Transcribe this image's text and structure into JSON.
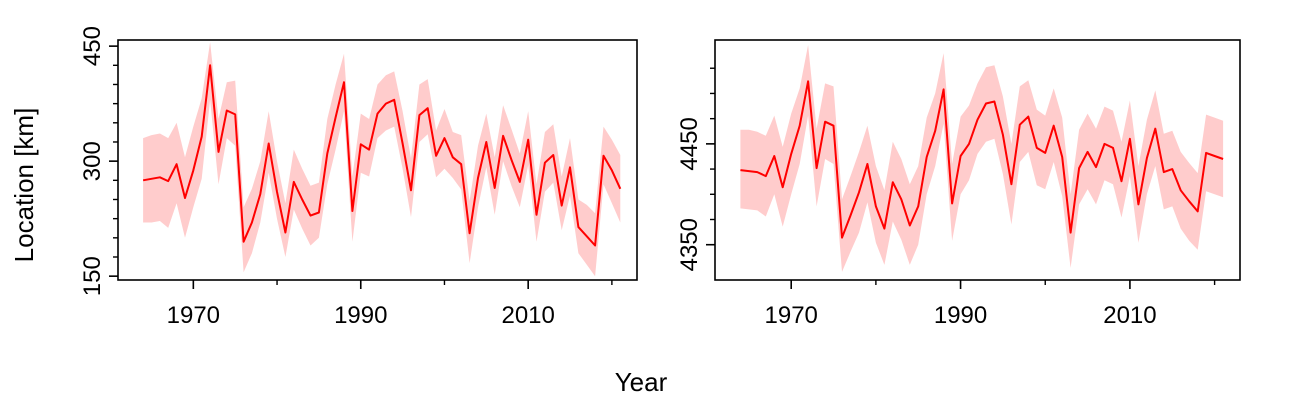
{
  "figure": {
    "xlabel": "Year",
    "ylabel": "Location [km]"
  },
  "colors": {
    "line": "#ff0000",
    "band": "#ffcccc",
    "frame": "#000000",
    "background": "#ffffff"
  },
  "chart_data": [
    {
      "type": "line",
      "title": "",
      "xlabel": "Year",
      "ylabel": "Location [km]",
      "xlim": [
        1961,
        2023
      ],
      "ylim": [
        145,
        458
      ],
      "x_ticks": [
        1970,
        1990,
        2010
      ],
      "x_minor_ticks": [
        1960,
        1980,
        2000,
        2020
      ],
      "y_ticks": [
        150,
        300,
        450
      ],
      "y_tick_labels": [
        "150",
        "300",
        "450"
      ],
      "y_minor_ticks": [
        175,
        200,
        225,
        250,
        275,
        325,
        350,
        375,
        400,
        425
      ],
      "grid": false,
      "legend": "none",
      "x": [
        1964,
        1965,
        1966,
        1967,
        1968,
        1969,
        1970,
        1971,
        1972,
        1973,
        1974,
        1975,
        1976,
        1977,
        1978,
        1979,
        1980,
        1981,
        1982,
        1983,
        1984,
        1985,
        1986,
        1987,
        1988,
        1989,
        1990,
        1991,
        1992,
        1993,
        1994,
        1995,
        1996,
        1997,
        1998,
        1999,
        2000,
        2001,
        2002,
        2003,
        2004,
        2005,
        2006,
        2007,
        2008,
        2009,
        2010,
        2011,
        2012,
        2013,
        2014,
        2015,
        2016,
        2017,
        2018,
        2019,
        2020,
        2021
      ],
      "series": [
        {
          "values": [
            275,
            277,
            279,
            274,
            296,
            252,
            288,
            332,
            425,
            312,
            366,
            361,
            195,
            220,
            257,
            323,
            260,
            207,
            273,
            250,
            229,
            233,
            310,
            357,
            403,
            235,
            322,
            315,
            362,
            375,
            380,
            323,
            262,
            360,
            369,
            307,
            330,
            305,
            296,
            206,
            278,
            325,
            265,
            333,
            302,
            273,
            328,
            230,
            298,
            308,
            242,
            292,
            214,
            202,
            190,
            307,
            288,
            264
          ],
          "lower": [
            220,
            220,
            222,
            213,
            245,
            200,
            240,
            277,
            380,
            270,
            330,
            320,
            155,
            180,
            220,
            285,
            225,
            175,
            237,
            212,
            190,
            200,
            270,
            315,
            365,
            195,
            285,
            280,
            330,
            340,
            345,
            290,
            227,
            325,
            335,
            279,
            290,
            278,
            263,
            167,
            240,
            292,
            230,
            300,
            268,
            240,
            295,
            195,
            260,
            272,
            210,
            255,
            180,
            165,
            150,
            270,
            245,
            220
          ],
          "upper": [
            330,
            334,
            336,
            330,
            350,
            305,
            345,
            382,
            455,
            355,
            403,
            405,
            240,
            264,
            300,
            365,
            300,
            245,
            315,
            290,
            268,
            272,
            355,
            400,
            440,
            280,
            362,
            355,
            400,
            412,
            417,
            365,
            304,
            400,
            407,
            340,
            368,
            338,
            334,
            248,
            320,
            362,
            305,
            373,
            342,
            310,
            365,
            270,
            338,
            348,
            280,
            330,
            250,
            243,
            232,
            345,
            328,
            308
          ]
        }
      ]
    },
    {
      "type": "line",
      "title": "",
      "xlabel": "Year",
      "ylabel": "",
      "xlim": [
        1961,
        2023
      ],
      "ylim": [
        4315,
        4553
      ],
      "x_ticks": [
        1970,
        1990,
        2010
      ],
      "x_minor_ticks": [
        1960,
        1980,
        2000,
        2020
      ],
      "y_ticks": [
        4350,
        4450
      ],
      "y_tick_labels": [
        "4350",
        "4450"
      ],
      "y_minor_ticks": [
        4375,
        4400,
        4425,
        4475,
        4500,
        4525
      ],
      "grid": false,
      "legend": "none",
      "x": [
        1964,
        1965,
        1966,
        1967,
        1968,
        1969,
        1970,
        1971,
        1972,
        1973,
        1974,
        1975,
        1976,
        1977,
        1978,
        1979,
        1980,
        1981,
        1982,
        1983,
        1984,
        1985,
        1986,
        1987,
        1988,
        1989,
        1990,
        1991,
        1992,
        1993,
        1994,
        1995,
        1996,
        1997,
        1998,
        1999,
        2000,
        2001,
        2002,
        2003,
        2004,
        2005,
        2006,
        2007,
        2008,
        2009,
        2010,
        2011,
        2012,
        2013,
        2014,
        2015,
        2016,
        2017,
        2018,
        2019,
        2020,
        2021
      ],
      "series": [
        {
          "values": [
            4424,
            4423,
            4422,
            4418,
            4438,
            4407,
            4440,
            4468,
            4512,
            4426,
            4472,
            4468,
            4357,
            4379,
            4402,
            4430,
            4388,
            4366,
            4412,
            4395,
            4369,
            4388,
            4437,
            4463,
            4504,
            4391,
            4438,
            4450,
            4474,
            4490,
            4492,
            4459,
            4410,
            4469,
            4477,
            4446,
            4441,
            4468,
            4437,
            4362,
            4426,
            4442,
            4427,
            4450,
            4446,
            4413,
            4455,
            4390,
            4436,
            4465,
            4422,
            4425,
            4404,
            4393,
            4383,
            4441,
            4438,
            4435
          ],
          "lower": [
            4386,
            4385,
            4384,
            4378,
            4400,
            4368,
            4400,
            4430,
            4478,
            4388,
            4435,
            4430,
            4323,
            4343,
            4362,
            4392,
            4352,
            4330,
            4373,
            4355,
            4330,
            4350,
            4400,
            4428,
            4470,
            4354,
            4400,
            4414,
            4440,
            4452,
            4455,
            4420,
            4370,
            4432,
            4442,
            4409,
            4405,
            4432,
            4398,
            4327,
            4390,
            4405,
            4390,
            4414,
            4410,
            4377,
            4418,
            4352,
            4400,
            4428,
            4385,
            4388,
            4366,
            4354,
            4345,
            4403,
            4400,
            4397
          ],
          "upper": [
            4464,
            4464,
            4462,
            4458,
            4478,
            4447,
            4480,
            4505,
            4548,
            4465,
            4510,
            4507,
            4395,
            4418,
            4442,
            4468,
            4428,
            4404,
            4452,
            4435,
            4410,
            4428,
            4476,
            4500,
            4540,
            4430,
            4477,
            4488,
            4510,
            4526,
            4528,
            4497,
            4450,
            4507,
            4513,
            4484,
            4478,
            4505,
            4476,
            4400,
            4464,
            4480,
            4465,
            4487,
            4483,
            4452,
            4493,
            4428,
            4474,
            4503,
            4460,
            4463,
            4442,
            4431,
            4421,
            4479,
            4476,
            4473
          ]
        }
      ]
    }
  ]
}
